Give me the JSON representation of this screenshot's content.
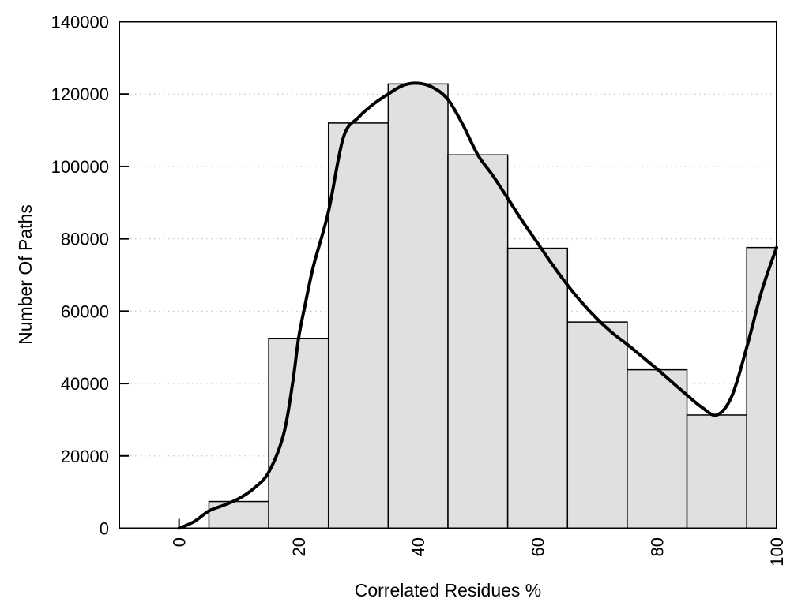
{
  "figure": {
    "background": "#ffffff"
  },
  "chart_data": {
    "type": "bar",
    "subtype": "histogram-with-smoothed-curve",
    "title": "",
    "xlabel": "Correlated Residues %",
    "ylabel": "Number Of Paths",
    "xlim": [
      -10,
      100
    ],
    "ylim": [
      0,
      140000
    ],
    "x_ticks": [
      0,
      20,
      40,
      60,
      80,
      100
    ],
    "y_ticks": [
      0,
      20000,
      40000,
      60000,
      80000,
      100000,
      120000,
      140000
    ],
    "grid": {
      "horizontal_dotted": true,
      "vertical": false,
      "color": "#c9c9c9"
    },
    "legend": "none",
    "bars": {
      "fill": "#e0e0e0",
      "border": "#000000",
      "bins": [
        {
          "range": [
            5,
            15
          ],
          "count": 7400
        },
        {
          "range": [
            15,
            25
          ],
          "count": 52500
        },
        {
          "range": [
            25,
            35
          ],
          "count": 112000
        },
        {
          "range": [
            35,
            45
          ],
          "count": 122800
        },
        {
          "range": [
            45,
            55
          ],
          "count": 103200
        },
        {
          "range": [
            55,
            65
          ],
          "count": 77400
        },
        {
          "range": [
            65,
            75
          ],
          "count": 57000
        },
        {
          "range": [
            75,
            85
          ],
          "count": 43800
        },
        {
          "range": [
            85,
            95
          ],
          "count": 31300
        },
        {
          "range": [
            95,
            100
          ],
          "count": 77600
        }
      ]
    },
    "curve": {
      "name": "smoothed-trend",
      "color": "#000000",
      "stroke_width": 4,
      "points": [
        [
          0,
          0
        ],
        [
          2.5,
          1800
        ],
        [
          5,
          4800
        ],
        [
          7.5,
          6400
        ],
        [
          10,
          8200
        ],
        [
          12.5,
          11000
        ],
        [
          15,
          15500
        ],
        [
          17.5,
          26000
        ],
        [
          19,
          40000
        ],
        [
          20,
          52500
        ],
        [
          21,
          61000
        ],
        [
          22.5,
          72500
        ],
        [
          25,
          87500
        ],
        [
          27.5,
          108000
        ],
        [
          30,
          113500
        ],
        [
          32.5,
          117200
        ],
        [
          35,
          120000
        ],
        [
          37.5,
          122400
        ],
        [
          40,
          123000
        ],
        [
          42.5,
          121800
        ],
        [
          45,
          118500
        ],
        [
          47.5,
          111500
        ],
        [
          50,
          103200
        ],
        [
          52.5,
          97500
        ],
        [
          55,
          91200
        ],
        [
          57.5,
          84800
        ],
        [
          60,
          78800
        ],
        [
          62.5,
          72800
        ],
        [
          65,
          67200
        ],
        [
          67.5,
          62200
        ],
        [
          70,
          57800
        ],
        [
          72.5,
          54000
        ],
        [
          75,
          50800
        ],
        [
          77.5,
          47400
        ],
        [
          80,
          44000
        ],
        [
          82.5,
          40400
        ],
        [
          85,
          36800
        ],
        [
          87.5,
          33400
        ],
        [
          90,
          31300
        ],
        [
          92.5,
          36500
        ],
        [
          95,
          50000
        ],
        [
          97.5,
          65500
        ],
        [
          100,
          77600
        ]
      ]
    },
    "axes": {
      "color": "#000000",
      "frame": true,
      "tick_length": 12
    }
  }
}
